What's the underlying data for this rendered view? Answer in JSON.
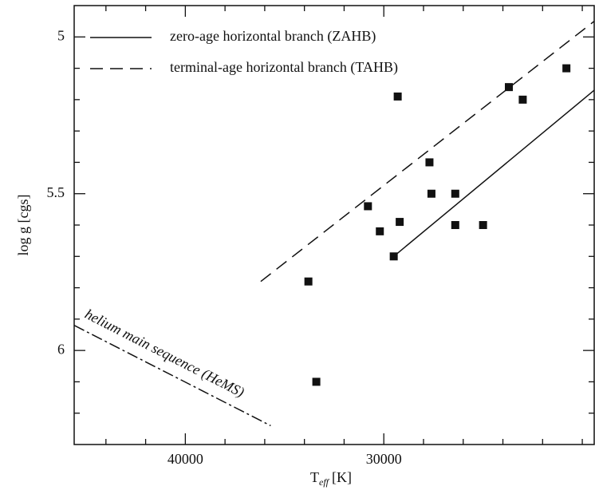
{
  "chart_data": {
    "type": "scatter",
    "xlabel": "T",
    "xlabel_sub": "eff",
    "xlabel_unit": "[K]",
    "ylabel": "log g [cgs]",
    "xlim": [
      45600,
      19400
    ],
    "ylim": [
      6.3,
      4.9
    ],
    "xticks": [
      40000,
      30000
    ],
    "xminorticks": [
      44000,
      42000,
      38000,
      36000,
      34000,
      32000,
      28000,
      26000,
      24000,
      22000,
      20000
    ],
    "yticks": [
      5,
      5.5,
      6
    ],
    "yminorticks": [
      5.1,
      5.2,
      5.3,
      5.4,
      5.6,
      5.7,
      5.8,
      5.9,
      6.1,
      6.2
    ],
    "points": {
      "color": "#111",
      "x": [
        29300,
        23700,
        23000,
        20800,
        27700,
        27600,
        26400,
        30800,
        29200,
        30200,
        26400,
        25000,
        29500,
        33800,
        33400
      ],
      "values": [
        5.19,
        5.16,
        5.2,
        5.1,
        5.4,
        5.5,
        5.5,
        5.54,
        5.59,
        5.62,
        5.6,
        5.6,
        5.7,
        5.78,
        6.1
      ]
    },
    "series": [
      {
        "name": "zero-age horizontal branch (ZAHB)",
        "style": "solid",
        "color": "#111",
        "x": [
          29500,
          19400
        ],
        "values": [
          5.7,
          5.17
        ]
      },
      {
        "name": "terminal-age horizontal branch (TAHB)",
        "style": "dashed",
        "color": "#111",
        "x": [
          36200,
          19400
        ],
        "values": [
          5.78,
          4.95
        ]
      }
    ],
    "hems": {
      "label": "helium main sequence (HeMS)",
      "style": "dashdot",
      "color": "#111",
      "x": [
        45600,
        35700
      ],
      "values": [
        5.92,
        6.24
      ]
    }
  }
}
